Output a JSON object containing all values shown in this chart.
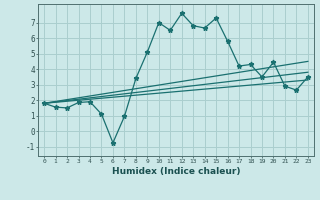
{
  "xlabel": "Humidex (Indice chaleur)",
  "background_color": "#cce8e8",
  "grid_color": "#aacece",
  "line_color": "#1a7070",
  "xlim": [
    -0.5,
    23.5
  ],
  "ylim": [
    -1.6,
    8.2
  ],
  "xticks": [
    0,
    1,
    2,
    3,
    4,
    5,
    6,
    7,
    8,
    9,
    10,
    11,
    12,
    13,
    14,
    15,
    16,
    17,
    18,
    19,
    20,
    21,
    22,
    23
  ],
  "yticks": [
    -1,
    0,
    1,
    2,
    3,
    4,
    5,
    6,
    7
  ],
  "main_line_x": [
    0,
    1,
    2,
    3,
    4,
    5,
    6,
    7,
    8,
    9,
    10,
    11,
    12,
    13,
    14,
    15,
    16,
    17,
    18,
    19,
    20,
    21,
    22,
    23
  ],
  "main_line_y": [
    1.8,
    1.55,
    1.5,
    1.85,
    1.9,
    1.1,
    -0.75,
    0.95,
    3.4,
    5.1,
    7.0,
    6.5,
    7.6,
    6.8,
    6.65,
    7.3,
    5.8,
    4.2,
    4.3,
    3.5,
    4.45,
    2.9,
    2.65,
    3.5
  ],
  "line2_x": [
    0,
    23
  ],
  "line2_y": [
    1.8,
    4.5
  ],
  "line3_x": [
    0,
    23
  ],
  "line3_y": [
    1.8,
    3.8
  ],
  "line4_x": [
    0,
    23
  ],
  "line4_y": [
    1.8,
    3.3
  ]
}
